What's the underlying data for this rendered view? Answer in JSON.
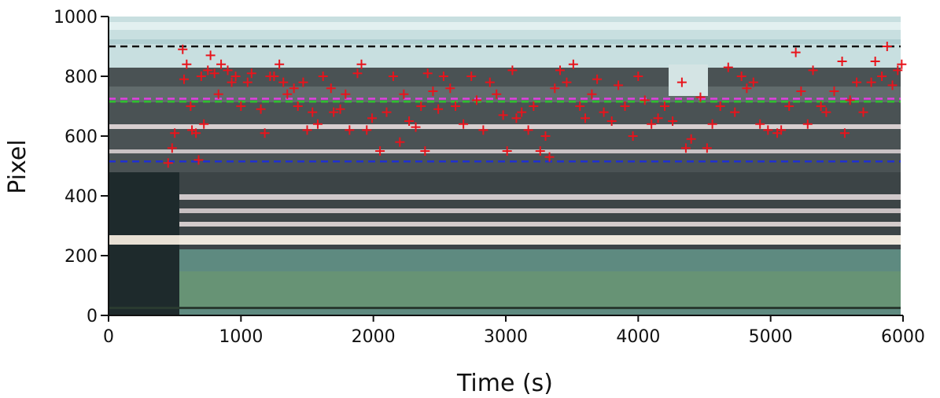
{
  "chart_data": {
    "type": "scatter",
    "x_label": "Time (s)",
    "y_label": "Pixel",
    "xlim": [
      0,
      6000
    ],
    "ylim": [
      0,
      1000
    ],
    "xticks": [
      0,
      1000,
      2000,
      3000,
      4000,
      5000,
      6000
    ],
    "yticks": [
      0,
      200,
      400,
      600,
      800,
      1000
    ],
    "hlines": [
      {
        "value": 900,
        "color": "#111111"
      },
      {
        "value": 725,
        "color": "#e040e0"
      },
      {
        "value": 715,
        "color": "#30c030"
      },
      {
        "value": 515,
        "color": "#2030d0"
      }
    ],
    "series": [
      {
        "color": "#e8141c",
        "x": [
          450,
          480,
          500,
          560,
          570,
          590,
          620,
          630,
          660,
          680,
          700,
          720,
          750,
          770,
          800,
          830,
          850,
          900,
          930,
          960,
          1000,
          1050,
          1080,
          1150,
          1180,
          1220,
          1250,
          1290,
          1320,
          1350,
          1400,
          1430,
          1470,
          1500,
          1540,
          1580,
          1620,
          1680,
          1700,
          1750,
          1790,
          1820,
          1880,
          1910,
          1950,
          1990,
          2050,
          2100,
          2150,
          2200,
          2230,
          2270,
          2320,
          2360,
          2390,
          2410,
          2450,
          2490,
          2530,
          2580,
          2620,
          2680,
          2740,
          2780,
          2830,
          2880,
          2930,
          2980,
          3010,
          3050,
          3080,
          3120,
          3170,
          3210,
          3260,
          3300,
          3330,
          3370,
          3410,
          3460,
          3510,
          3560,
          3600,
          3650,
          3690,
          3740,
          3800,
          3850,
          3900,
          3960,
          4000,
          4050,
          4100,
          4150,
          4200,
          4260,
          4330,
          4360,
          4400,
          4470,
          4520,
          4560,
          4620,
          4680,
          4730,
          4780,
          4820,
          4870,
          4920,
          4980,
          5050,
          5080,
          5140,
          5190,
          5230,
          5280,
          5320,
          5380,
          5420,
          5480,
          5540,
          5560,
          5600,
          5650,
          5700,
          5760,
          5790,
          5840,
          5880,
          5920,
          5960,
          5990
        ],
        "values": [
          510,
          560,
          610,
          890,
          790,
          840,
          700,
          620,
          610,
          520,
          800,
          640,
          820,
          870,
          810,
          740,
          840,
          820,
          780,
          800,
          700,
          780,
          810,
          690,
          610,
          800,
          800,
          840,
          780,
          740,
          760,
          700,
          780,
          620,
          680,
          640,
          800,
          760,
          680,
          690,
          740,
          620,
          810,
          840,
          620,
          660,
          550,
          680,
          800,
          580,
          740,
          650,
          630,
          700,
          550,
          810,
          750,
          690,
          800,
          760,
          700,
          640,
          800,
          720,
          620,
          780,
          740,
          670,
          550,
          820,
          660,
          680,
          620,
          700,
          550,
          600,
          530,
          760,
          820,
          780,
          840,
          700,
          660,
          740,
          790,
          680,
          650,
          770,
          700,
          600,
          800,
          720,
          640,
          660,
          700,
          650,
          780,
          560,
          590,
          730,
          560,
          640,
          700,
          830,
          680,
          800,
          760,
          780,
          640,
          620,
          610,
          620,
          700,
          880,
          750,
          640,
          820,
          700,
          680,
          750,
          850,
          610,
          720,
          780,
          680,
          780,
          850,
          800,
          900,
          770,
          820,
          840
        ]
      }
    ]
  }
}
